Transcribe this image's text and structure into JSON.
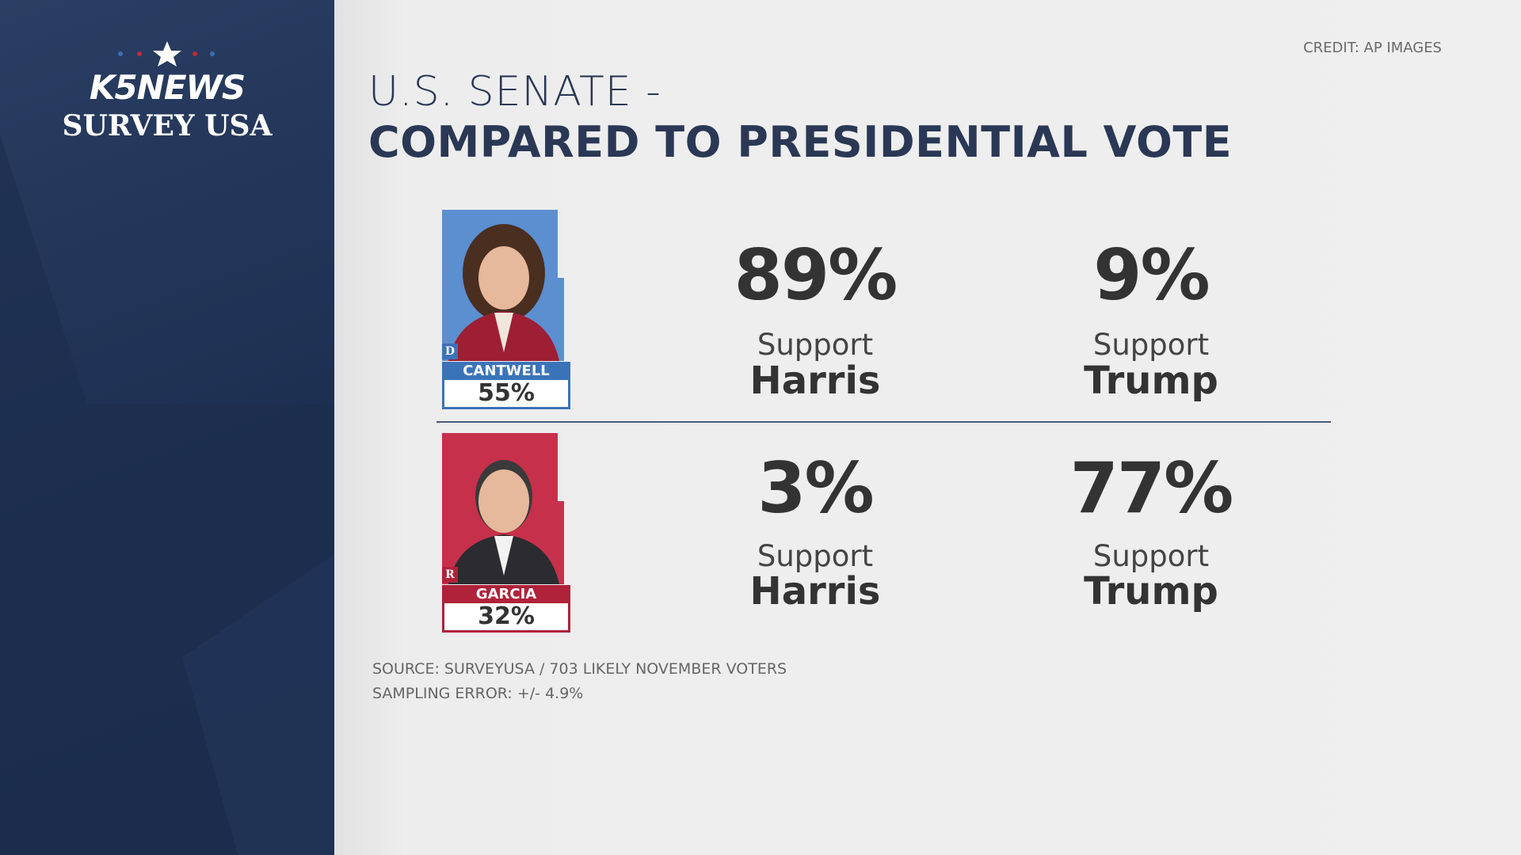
{
  "branding": {
    "logo": "K5NEWS",
    "subtitle": "SURVEY USA"
  },
  "credit": "CREDIT: AP IMAGES",
  "title": {
    "line1": "U.S. SENATE -",
    "line2": "COMPARED TO PRESIDENTIAL VOTE"
  },
  "candidates": [
    {
      "party": "D",
      "name": "CANTWELL",
      "share": "55%",
      "support": [
        {
          "pct": "89%",
          "label": "Support",
          "who": "Harris"
        },
        {
          "pct": "9%",
          "label": "Support",
          "who": "Trump"
        }
      ]
    },
    {
      "party": "R",
      "name": "GARCIA",
      "share": "32%",
      "support": [
        {
          "pct": "3%",
          "label": "Support",
          "who": "Harris"
        },
        {
          "pct": "77%",
          "label": "Support",
          "who": "Trump"
        }
      ]
    }
  ],
  "source": {
    "line1": "SOURCE: SURVEYUSA / 703 LIKELY NOVEMBER VOTERS",
    "line2": "SAMPLING ERROR:  +/- 4.9%"
  }
}
